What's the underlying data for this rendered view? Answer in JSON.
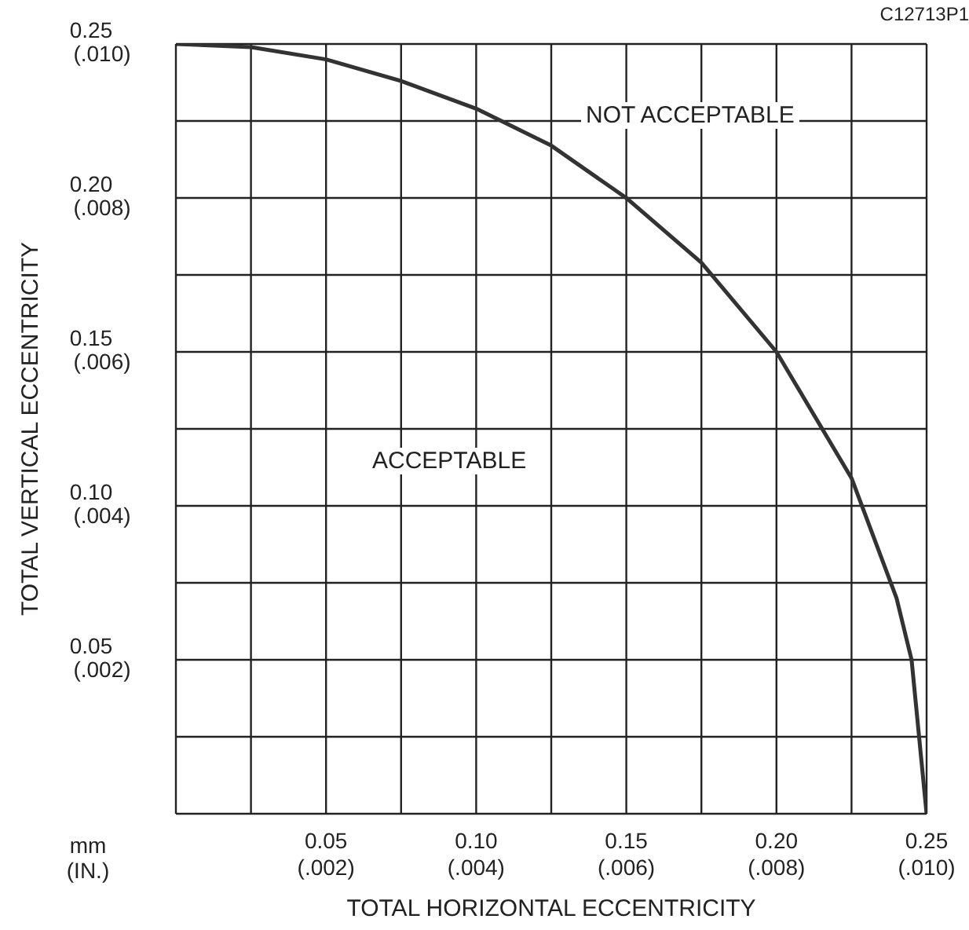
{
  "chart_data": {
    "type": "line",
    "xlabel": "TOTAL HORIZONTAL ECCENTRICITY",
    "ylabel": "TOTAL VERTICAL ECCENTRICITY",
    "x": [
      0,
      0.025,
      0.05,
      0.075,
      0.1,
      0.125,
      0.15,
      0.175,
      0.2,
      0.225,
      0.24,
      0.245,
      0.25
    ],
    "series": [
      {
        "color": "#333333",
        "values": [
          0.25,
          0.249,
          0.245,
          0.238,
          0.229,
          0.217,
          0.2,
          0.179,
          0.15,
          0.109,
          0.07,
          0.05,
          0
        ]
      }
    ],
    "xlim": [
      0,
      0.25
    ],
    "ylim": [
      0,
      0.25
    ],
    "xticks": [
      {
        "value": 0,
        "label": null
      },
      {
        "value": 0.025,
        "label": null
      },
      0.05,
      {
        "value": 0.075,
        "label": null
      },
      {
        "value": 0.1,
        "label": "0.10"
      },
      {
        "value": 0.125,
        "label": null
      },
      0.15,
      {
        "value": 0.175,
        "label": null
      },
      {
        "value": 0.2,
        "label": "0.20"
      },
      {
        "value": 0.225,
        "label": null
      },
      0.25
    ],
    "yticks": [
      {
        "value": 0,
        "label": null
      },
      {
        "value": 0.025,
        "label": null
      },
      0.05,
      {
        "value": 0.075,
        "label": null
      },
      {
        "value": 0.1,
        "label": "0.10"
      },
      {
        "value": 0.125,
        "label": null
      },
      0.15,
      {
        "value": 0.175,
        "label": null
      },
      {
        "value": 0.2,
        "label": "0.20"
      },
      {
        "value": 0.225,
        "label": null
      },
      0.25
    ],
    "x2lim": [
      0,
      0.01
    ],
    "x2ticks": [
      {
        "value": 0.002,
        "label": "(.002)"
      },
      {
        "value": 0.004,
        "label": "(.004)"
      },
      {
        "value": 0.006,
        "label": "(.006)"
      },
      {
        "value": 0.008,
        "label": "(.008)"
      },
      {
        "value": 0.01,
        "label": "(.010)"
      }
    ],
    "y2lim": [
      0,
      0.01
    ],
    "y2ticks": [
      {
        "value": 0.002,
        "label": "(.002)"
      },
      {
        "value": 0.004,
        "label": "(.004)"
      },
      {
        "value": 0.006,
        "label": "(.006)"
      },
      {
        "value": 0.008,
        "label": "(.008)"
      },
      {
        "value": 0.01,
        "label": "(.010)"
      }
    ],
    "grid": true,
    "marker": "none",
    "line_style": "solid",
    "annotations": [
      "NOT ACCEPTABLE",
      "ACCEPTABLE",
      "mm (IN.)",
      "C12713P1"
    ]
  }
}
